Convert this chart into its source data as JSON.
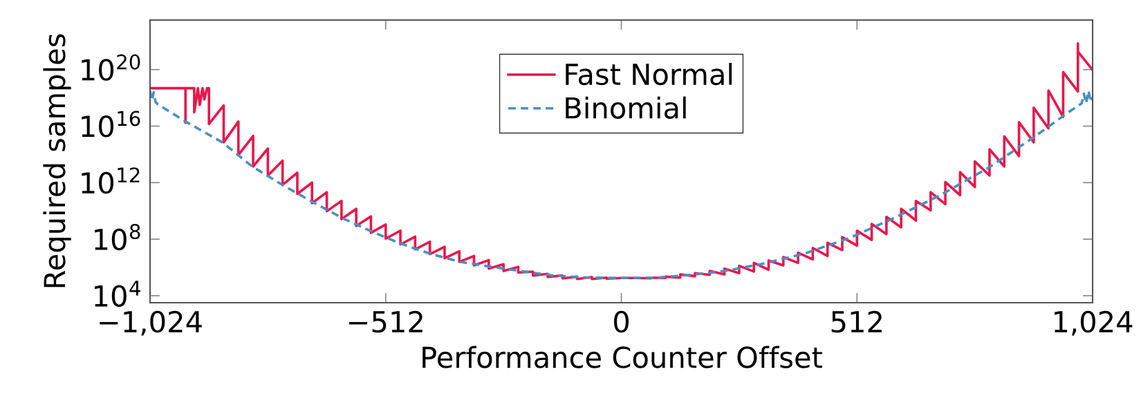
{
  "chart_data": {
    "type": "line",
    "xlabel": "Performance Counter Offset",
    "ylabel": "Required samples",
    "log": "y",
    "xlim": [
      -1024,
      1024
    ],
    "xticks": [
      {
        "value": -1024,
        "label": "−1,024"
      },
      {
        "value": -512,
        "label": "−512"
      },
      0,
      512,
      {
        "value": 1024,
        "label": "1,024"
      }
    ],
    "ylim": [
      3200.0,
      3.2e+23
    ],
    "yticks": [
      {
        "value": 10000.0,
        "label": "10$^{4}$"
      },
      {
        "value": 100000000.0,
        "label": "10$^{8}$"
      },
      {
        "value": 1000000000000.0,
        "label": "10$^{12}$"
      },
      {
        "value": 1e+16,
        "label": "10$^{16}$"
      },
      {
        "value": 1e+20,
        "label": "10$^{20}$"
      }
    ],
    "grid": false,
    "legend": "top",
    "series": [
      {
        "name": "Fast Normal",
        "color": "#e8174b",
        "line_style": "solid",
        "x": [
          -1024,
          -947,
          -947,
          -947,
          -928,
          -928,
          -920,
          -916,
          -910,
          -906,
          -900,
          -896,
          -896,
          -864,
          -864,
          -832,
          -832,
          -800,
          -800,
          -768,
          -768,
          -736,
          -736,
          -704,
          -704,
          -672,
          -672,
          -640,
          -640,
          -608,
          -608,
          -576,
          -576,
          -544,
          -544,
          -512,
          -512,
          -480,
          -480,
          -448,
          -448,
          -416,
          -416,
          -384,
          -384,
          -352,
          -352,
          -320,
          -320,
          -288,
          -288,
          -256,
          -256,
          -224,
          -224,
          -192,
          -192,
          -160,
          -160,
          -128,
          -128,
          -96,
          -96,
          -64,
          -64,
          -32,
          -32,
          0,
          32,
          64,
          64,
          96,
          96,
          128,
          128,
          160,
          160,
          192,
          192,
          224,
          224,
          256,
          256,
          288,
          288,
          320,
          320,
          352,
          352,
          384,
          384,
          416,
          416,
          448,
          448,
          480,
          480,
          512,
          512,
          544,
          544,
          576,
          576,
          608,
          608,
          640,
          640,
          672,
          672,
          704,
          704,
          736,
          736,
          768,
          768,
          800,
          800,
          832,
          832,
          864,
          864,
          896,
          896,
          928,
          928,
          960,
          960,
          992,
          992,
          992,
          1024
        ],
        "values": [
          4.8e+18,
          4.8e+18,
          1.7e+16,
          4.8e+18,
          4.8e+18,
          9.5e+16,
          4.8e+18,
          3.2e+17,
          4.8e+18,
          7.9e+17,
          4.8e+18,
          4.8e+18,
          1.4e+16,
          2.9e+17,
          720000000000000.0,
          2.1e+16,
          93000000000000.0,
          2000000000000000.0,
          14000000000000.0,
          260000000000000.0,
          3200000000000.0,
          36000000000000.0,
          710000000000.0,
          5000000000000.0,
          160000000000.0,
          1000000000000.0,
          35000000000.0,
          210000000000.0,
          9500000000.0,
          51000000000.0,
          2600000000.0,
          14000000000.0,
          850000000.0,
          4100000000.0,
          280000000.0,
          1100000000.0,
          110000000.0,
          400000000.0,
          42000000.0,
          150000000.0,
          19000000.0,
          66000000.0,
          8700000.0,
          29000000.0,
          4500000.0,
          14000000.0,
          2500000.0,
          6500000.0,
          1400000.0,
          3300000.0,
          830000.0,
          1700000.0,
          560000.0,
          1100000.0,
          440000.0,
          510000.0,
          270000.0,
          350000.0,
          210000.0,
          270000.0,
          170000.0,
          220000.0,
          150000.0,
          210000.0,
          150000.0,
          190000.0,
          160000.0,
          180000.0,
          180000.0,
          170000.0,
          190000.0,
          180000.0,
          220000.0,
          190000.0,
          320000.0,
          240000.0,
          390000.0,
          300000.0,
          560000.0,
          320000.0,
          830000.0,
          390000.0,
          1300000.0,
          510000.0,
          2100000.0,
          690000.0,
          3100000.0,
          1400000.0,
          5400000.0,
          2100000.0,
          11000000.0,
          3700000.0,
          24000000.0,
          6500000.0,
          55000000.0,
          17000000.0,
          140000000.0,
          35000000.0,
          400000000.0,
          89000000.0,
          1200000000.0,
          230000000.0,
          3800000000.0,
          690000000.0,
          14000000000.0,
          2100000000.0,
          51000000000.0,
          11000000000.0,
          210000000000.0,
          30000000000.0,
          1100000000000.0,
          130000000000.0,
          5600000000000.0,
          490000000000.0,
          32000000000000.0,
          3200000000000.0,
          230000000000000.0,
          14000000000000.0,
          1900000000000000.0,
          76000000000000.0,
          1.9e+16,
          720000000000000.0,
          2e+17,
          6900000000000000.0,
          3.3e+18,
          4.5e+16,
          6.6e+19,
          2.8e+18,
          7.1e+21,
          1.9e+21,
          9.5e+19
        ]
      },
      {
        "name": "Binomial",
        "color": "#4a8fc4",
        "line_style": "dashed",
        "x": [
          -1024,
          -1020,
          -1016,
          -1012,
          -1007,
          -947,
          -867,
          -802,
          -737,
          -671,
          -606,
          -541,
          -481,
          -416,
          -351,
          -281,
          -223,
          -148,
          -73,
          3,
          77,
          153,
          228,
          303,
          398,
          498,
          598,
          698,
          799,
          899,
          974,
          1000,
          1005,
          1010,
          1015,
          1020,
          1024
        ],
        "values": [
          3.2e+18,
          6.3e+17,
          2.5e+18,
          5e+17,
          3.5e+17,
          2.1e+16,
          720000000000000.0,
          14000000000000.0,
          710000000000.0,
          43000000000.0,
          3100000000.0,
          330000000.0,
          51000000.0,
          9500000.0,
          2500000.0,
          1100000.0,
          580000.0,
          270000.0,
          190000.0,
          180000.0,
          190000.0,
          300000.0,
          580000.0,
          1700000.0,
          9500000.0,
          130000000.0,
          3800000000.0,
          160000000000.0,
          12000000000000.0,
          1900000000000000.0,
          1.1e+17,
          4e+17,
          2e+18,
          4e+17,
          3.2e+18,
          5e+17,
          1.1e+18
        ]
      }
    ]
  }
}
